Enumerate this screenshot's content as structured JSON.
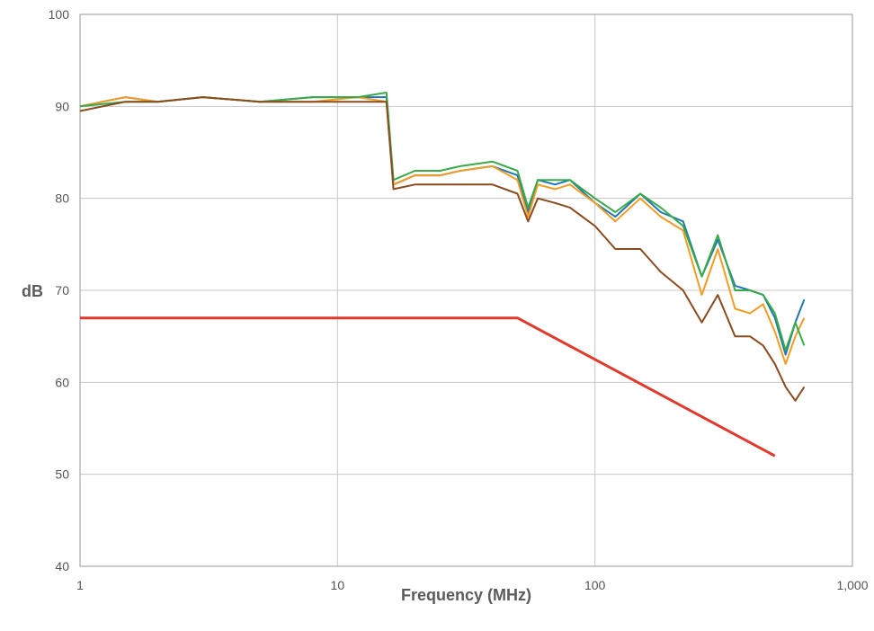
{
  "chart_data": {
    "type": "line",
    "title": "",
    "xlabel": "Frequency (MHz)",
    "ylabel": "dB",
    "x_scale": "log",
    "xlim": [
      1,
      1000
    ],
    "ylim": [
      40,
      100
    ],
    "x_ticks": [
      1,
      10,
      100,
      1000
    ],
    "x_tick_labels": [
      "1",
      "10",
      "100",
      "1,000"
    ],
    "y_ticks": [
      40,
      50,
      60,
      70,
      80,
      90,
      100
    ],
    "y_tick_labels": [
      "40",
      "50",
      "60",
      "70",
      "80",
      "90",
      "100"
    ],
    "grid": true,
    "legend": "none",
    "series": [
      {
        "color": "#1f77b4",
        "x": [
          1,
          1.5,
          2,
          3,
          5,
          8,
          12,
          15.5,
          16.5,
          20,
          25,
          30,
          40,
          50,
          55,
          60,
          70,
          80,
          100,
          120,
          150,
          180,
          220,
          260,
          300,
          350,
          400,
          450,
          500,
          550,
          600,
          650
        ],
        "y": [
          90,
          91,
          90.5,
          91,
          90.5,
          91,
          91,
          91,
          81.5,
          82.5,
          82.5,
          83,
          83.5,
          82.5,
          78.5,
          82,
          81.5,
          82,
          79.5,
          78,
          80.5,
          78.5,
          77.5,
          71.5,
          75.5,
          70.5,
          70,
          69.5,
          67,
          63,
          66.5,
          69
        ]
      },
      {
        "color": "#f39c24",
        "x": [
          1,
          1.5,
          2,
          3,
          5,
          8,
          12,
          15.5,
          16.5,
          20,
          25,
          30,
          40,
          50,
          55,
          60,
          70,
          80,
          100,
          120,
          150,
          180,
          220,
          260,
          300,
          350,
          400,
          450,
          500,
          550,
          600,
          650
        ],
        "y": [
          90,
          91,
          90.5,
          91,
          90.5,
          90.5,
          91,
          90.5,
          81.5,
          82.5,
          82.5,
          83,
          83.5,
          82,
          78,
          81.5,
          81,
          81.5,
          79.5,
          77.5,
          80,
          78,
          76.5,
          69.5,
          74.5,
          68,
          67.5,
          68.5,
          65.5,
          62,
          65,
          67
        ]
      },
      {
        "color": "#3aaa48",
        "x": [
          1,
          1.5,
          2,
          3,
          5,
          8,
          12,
          15.5,
          16.5,
          20,
          25,
          30,
          40,
          50,
          55,
          60,
          70,
          80,
          100,
          120,
          150,
          180,
          220,
          260,
          300,
          350,
          400,
          450,
          500,
          550,
          600,
          650
        ],
        "y": [
          90,
          90.5,
          90.5,
          91,
          90.5,
          91,
          91,
          91.5,
          82,
          83,
          83,
          83.5,
          84,
          83,
          79,
          82,
          82,
          82,
          80,
          78.5,
          80.5,
          79,
          77,
          71.5,
          76,
          70,
          70,
          69.5,
          67.5,
          63.5,
          66.5,
          64
        ]
      },
      {
        "color": "#8b4b1e",
        "x": [
          1,
          1.5,
          2,
          3,
          5,
          8,
          12,
          15.5,
          16.5,
          20,
          25,
          30,
          40,
          50,
          55,
          60,
          70,
          80,
          100,
          120,
          150,
          180,
          220,
          260,
          300,
          350,
          400,
          450,
          500,
          550,
          600,
          650
        ],
        "y": [
          89.5,
          90.5,
          90.5,
          91,
          90.5,
          90.5,
          90.5,
          90.5,
          81,
          81.5,
          81.5,
          81.5,
          81.5,
          80.5,
          77.5,
          80,
          79.5,
          79,
          77,
          74.5,
          74.5,
          72,
          70,
          66.5,
          69.5,
          65,
          65,
          64,
          62,
          59.5,
          58,
          59.5
        ]
      },
      {
        "color": "#e03a2c",
        "x": [
          1,
          50,
          500
        ],
        "y": [
          67,
          67,
          52
        ]
      }
    ]
  }
}
